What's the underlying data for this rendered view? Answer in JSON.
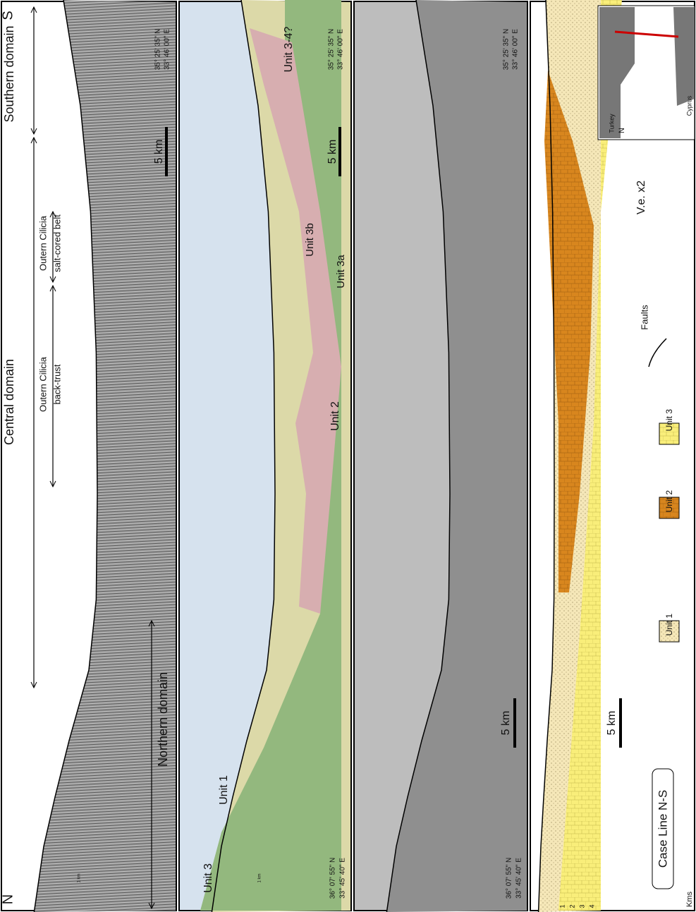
{
  "panel1": {
    "north": "N",
    "south": "S",
    "southern_domain": "Southern domain",
    "central_domain": "Central domain",
    "northern_domain": "Northern domain",
    "back_trust": [
      "Outern Cilicia",
      "back-trust"
    ],
    "salt_belt": [
      "Outern Cilicia",
      "salt-cored belt"
    ],
    "scale": "5 km",
    "coords_s": [
      "35° 25' 35\" N",
      "33° 46' 00\" E"
    ],
    "small_scale": "1 km"
  },
  "panel2": {
    "unit_3_4": "Unit 3-4?",
    "unit_3b": "Unit 3b",
    "unit_3a": "Unit 3a",
    "unit_2": "Unit 2",
    "unit_1": "Unit 1",
    "unit_3": "Unit 3",
    "scale": "5 km",
    "coords_s": [
      "35° 25' 35\" N",
      "33° 46' 00\" E"
    ],
    "coords_n": [
      "36° 07' 55\" N",
      "33° 45' 40\" E"
    ],
    "small_scale": "1 km"
  },
  "panel3": {
    "scale": "5 km",
    "coords_s": [
      "35° 25' 35\" N",
      "33° 46' 00\" E"
    ],
    "coords_n": [
      "36° 07' 55\" N",
      "33° 45' 40\" E"
    ]
  },
  "panel4": {
    "vertical_exaggeration": "V.e. x2",
    "scale": "5 km",
    "legend": {
      "unit_1": "Unit 1",
      "unit_2": "Unit 2",
      "unit_3": "Unit 3",
      "faults": "Faults"
    },
    "case_line": "Case Line  N-S",
    "inset": {
      "turkey": "Turkey",
      "cyprus": "Cyprus",
      "north": "N"
    },
    "depth_axis": {
      "label": "Kms",
      "ticks": [
        "1",
        "2",
        "3",
        "4"
      ]
    }
  }
}
